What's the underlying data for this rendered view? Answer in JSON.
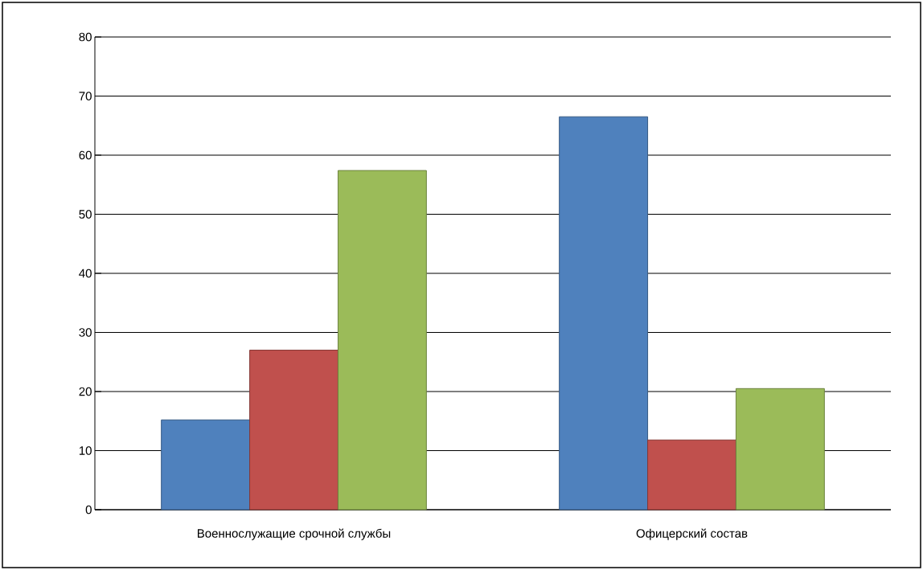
{
  "chart_data": {
    "type": "bar",
    "categories": [
      "Военнослужащие   срочной  службы",
      "Офицерский   состав"
    ],
    "series": [
      {
        "color": "#4f81bd",
        "values": [
          15.2,
          66.5
        ]
      },
      {
        "color": "#c0504d",
        "values": [
          27,
          11.8
        ]
      },
      {
        "color": "#9bbb59",
        "values": [
          57.4,
          20.5
        ]
      }
    ],
    "ylim": [
      0,
      80
    ],
    "yticks": [
      0,
      10,
      20,
      30,
      40,
      50,
      60,
      70,
      80
    ],
    "grid": "y"
  }
}
